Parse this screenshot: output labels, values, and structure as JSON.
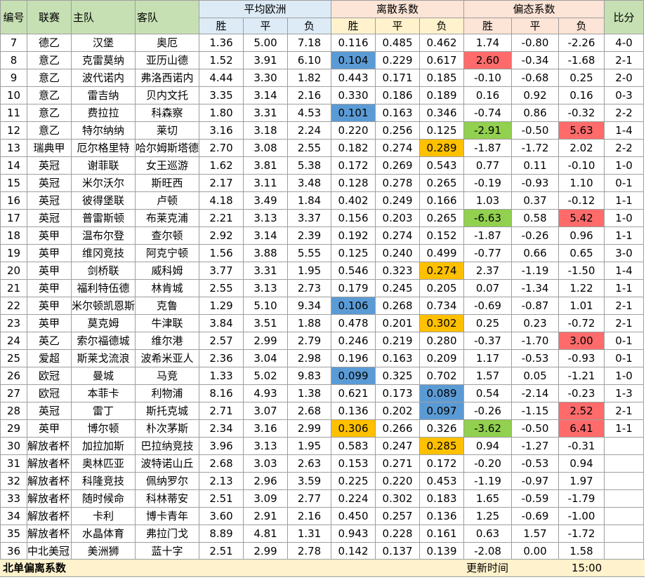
{
  "header": {
    "no": "编号",
    "league": "联赛",
    "home": "主队",
    "away": "客队",
    "avg_europe": "平均欧洲",
    "dispersion": "离散系数",
    "deviation": "偏态系数",
    "score": "比分",
    "win": "胜",
    "draw": "平",
    "lose": "负"
  },
  "rows": [
    {
      "no": "7",
      "league": "德乙",
      "home": "汉堡",
      "away": "奥厄",
      "e": [
        "1.36",
        "5.00",
        "7.18"
      ],
      "d": [
        "0.116",
        "0.485",
        "0.462"
      ],
      "s": [
        "1.74",
        "-0.80",
        "-2.26"
      ],
      "score": "4-0"
    },
    {
      "no": "8",
      "league": "意乙",
      "home": "克雷莫纳",
      "away": "亚历山德",
      "e": [
        "1.52",
        "3.91",
        "6.10"
      ],
      "d": [
        "0.104",
        "0.229",
        "0.617"
      ],
      "s": [
        "2.60",
        "-0.34",
        "-1.68"
      ],
      "score": "2-1"
    },
    {
      "no": "9",
      "league": "意乙",
      "home": "波代诺内",
      "away": "弗洛西诺内",
      "e": [
        "4.44",
        "3.30",
        "1.82"
      ],
      "d": [
        "0.443",
        "0.171",
        "0.185"
      ],
      "s": [
        "-0.10",
        "-0.68",
        "0.25"
      ],
      "score": "2-0"
    },
    {
      "no": "10",
      "league": "意乙",
      "home": "雷吉纳",
      "away": "贝内文托",
      "e": [
        "3.35",
        "3.14",
        "2.16"
      ],
      "d": [
        "0.330",
        "0.186",
        "0.189"
      ],
      "s": [
        "0.16",
        "0.92",
        "0.16"
      ],
      "score": "0-3"
    },
    {
      "no": "11",
      "league": "意乙",
      "home": "费拉拉",
      "away": "科森察",
      "e": [
        "1.80",
        "3.31",
        "4.53"
      ],
      "d": [
        "0.101",
        "0.163",
        "0.346"
      ],
      "s": [
        "-0.74",
        "0.86",
        "-0.32"
      ],
      "score": "2-2"
    },
    {
      "no": "12",
      "league": "意乙",
      "home": "特尔纳纳",
      "away": "莱切",
      "e": [
        "3.16",
        "3.18",
        "2.24"
      ],
      "d": [
        "0.220",
        "0.256",
        "0.125"
      ],
      "s": [
        "-2.91",
        "-0.50",
        "5.63"
      ],
      "score": "1-4"
    },
    {
      "no": "13",
      "league": "瑞典甲",
      "home": "厄尔格里特",
      "away": "哈尔姆斯塔德",
      "e": [
        "2.70",
        "3.08",
        "2.55"
      ],
      "d": [
        "0.182",
        "0.274",
        "0.289"
      ],
      "s": [
        "-1.87",
        "-1.72",
        "2.02"
      ],
      "score": "2-2"
    },
    {
      "no": "14",
      "league": "英冠",
      "home": "谢菲联",
      "away": "女王巡游",
      "e": [
        "1.62",
        "3.81",
        "5.38"
      ],
      "d": [
        "0.172",
        "0.269",
        "0.543"
      ],
      "s": [
        "0.77",
        "0.11",
        "-0.10"
      ],
      "score": "1-0"
    },
    {
      "no": "15",
      "league": "英冠",
      "home": "米尔沃尔",
      "away": "斯旺西",
      "e": [
        "2.17",
        "3.11",
        "3.48"
      ],
      "d": [
        "0.128",
        "0.278",
        "0.265"
      ],
      "s": [
        "-0.19",
        "-0.93",
        "1.10"
      ],
      "score": "0-1"
    },
    {
      "no": "16",
      "league": "英冠",
      "home": "彼得堡联",
      "away": "卢顿",
      "e": [
        "4.18",
        "3.49",
        "1.84"
      ],
      "d": [
        "0.402",
        "0.249",
        "0.166"
      ],
      "s": [
        "1.03",
        "0.37",
        "-0.12"
      ],
      "score": "1-1"
    },
    {
      "no": "17",
      "league": "英冠",
      "home": "普雷斯顿",
      "away": "布莱克浦",
      "e": [
        "2.21",
        "3.13",
        "3.37"
      ],
      "d": [
        "0.156",
        "0.203",
        "0.265"
      ],
      "s": [
        "-6.63",
        "0.58",
        "5.42"
      ],
      "score": "1-0"
    },
    {
      "no": "18",
      "league": "英甲",
      "home": "温布尔登",
      "away": "查尔顿",
      "e": [
        "2.92",
        "3.14",
        "2.39"
      ],
      "d": [
        "0.192",
        "0.274",
        "0.152"
      ],
      "s": [
        "-1.87",
        "-0.26",
        "0.96"
      ],
      "score": "1-1"
    },
    {
      "no": "19",
      "league": "英甲",
      "home": "维冈竞技",
      "away": "阿克宁顿",
      "e": [
        "1.56",
        "3.88",
        "5.55"
      ],
      "d": [
        "0.125",
        "0.240",
        "0.499"
      ],
      "s": [
        "-0.77",
        "0.66",
        "0.65"
      ],
      "score": "3-0"
    },
    {
      "no": "20",
      "league": "英甲",
      "home": "剑桥联",
      "away": "威科姆",
      "e": [
        "3.77",
        "3.31",
        "1.95"
      ],
      "d": [
        "0.546",
        "0.323",
        "0.274"
      ],
      "s": [
        "2.37",
        "-1.19",
        "-1.50"
      ],
      "score": "1-4"
    },
    {
      "no": "21",
      "league": "英甲",
      "home": "福利特伍德",
      "away": "林肯城",
      "e": [
        "2.55",
        "3.13",
        "2.73"
      ],
      "d": [
        "0.179",
        "0.245",
        "0.205"
      ],
      "s": [
        "0.07",
        "-1.34",
        "1.22"
      ],
      "score": "1-1"
    },
    {
      "no": "22",
      "league": "英甲",
      "home": "米尔顿凯恩斯",
      "away": "克鲁",
      "e": [
        "1.29",
        "5.10",
        "9.34"
      ],
      "d": [
        "0.106",
        "0.268",
        "0.734"
      ],
      "s": [
        "-0.69",
        "-0.87",
        "1.01"
      ],
      "score": "2-1"
    },
    {
      "no": "23",
      "league": "英甲",
      "home": "莫克姆",
      "away": "牛津联",
      "e": [
        "3.84",
        "3.51",
        "1.88"
      ],
      "d": [
        "0.478",
        "0.201",
        "0.302"
      ],
      "s": [
        "0.25",
        "0.23",
        "-0.72"
      ],
      "score": "2-1"
    },
    {
      "no": "24",
      "league": "英乙",
      "home": "索尔福德城",
      "away": "维尔港",
      "e": [
        "2.57",
        "2.99",
        "2.79"
      ],
      "d": [
        "0.246",
        "0.219",
        "0.280"
      ],
      "s": [
        "-0.37",
        "-1.70",
        "3.00"
      ],
      "score": "0-1"
    },
    {
      "no": "25",
      "league": "爱超",
      "home": "斯莱戈流浪",
      "away": "波希米亚人",
      "e": [
        "2.36",
        "3.04",
        "2.98"
      ],
      "d": [
        "0.196",
        "0.163",
        "0.209"
      ],
      "s": [
        "1.17",
        "-0.53",
        "-0.93"
      ],
      "score": "0-1"
    },
    {
      "no": "26",
      "league": "欧冠",
      "home": "曼城",
      "away": "马竞",
      "e": [
        "1.33",
        "5.02",
        "9.83"
      ],
      "d": [
        "0.099",
        "0.325",
        "0.702"
      ],
      "s": [
        "1.57",
        "0.05",
        "-1.21"
      ],
      "score": "1-0"
    },
    {
      "no": "27",
      "league": "欧冠",
      "home": "本菲卡",
      "away": "利物浦",
      "e": [
        "8.16",
        "4.93",
        "1.38"
      ],
      "d": [
        "0.621",
        "0.173",
        "0.089"
      ],
      "s": [
        "0.54",
        "-2.14",
        "-0.23"
      ],
      "score": "1-3"
    },
    {
      "no": "28",
      "league": "英冠",
      "home": "雷丁",
      "away": "斯托克城",
      "e": [
        "2.71",
        "3.07",
        "2.68"
      ],
      "d": [
        "0.136",
        "0.202",
        "0.097"
      ],
      "s": [
        "-0.26",
        "-1.15",
        "2.52"
      ],
      "score": "2-1"
    },
    {
      "no": "29",
      "league": "英甲",
      "home": "博尔顿",
      "away": "朴次茅斯",
      "e": [
        "2.34",
        "3.16",
        "2.99"
      ],
      "d": [
        "0.306",
        "0.266",
        "0.326"
      ],
      "s": [
        "-3.62",
        "-0.50",
        "6.41"
      ],
      "score": "1-1"
    },
    {
      "no": "30",
      "league": "解放者杯",
      "home": "加拉加斯",
      "away": "巴拉纳竞技",
      "e": [
        "3.96",
        "3.13",
        "1.95"
      ],
      "d": [
        "0.583",
        "0.247",
        "0.285"
      ],
      "s": [
        "0.94",
        "-1.27",
        "-0.31"
      ],
      "score": ""
    },
    {
      "no": "31",
      "league": "解放者杯",
      "home": "奥林匹亚",
      "away": "波特诺山丘",
      "e": [
        "2.68",
        "3.03",
        "2.63"
      ],
      "d": [
        "0.153",
        "0.271",
        "0.172"
      ],
      "s": [
        "-0.20",
        "-0.53",
        "0.94"
      ],
      "score": ""
    },
    {
      "no": "32",
      "league": "解放者杯",
      "home": "科隆竞技",
      "away": "佩纳罗尔",
      "e": [
        "2.13",
        "2.96",
        "3.59"
      ],
      "d": [
        "0.225",
        "0.220",
        "0.453"
      ],
      "s": [
        "-1.19",
        "-0.97",
        "1.97"
      ],
      "score": ""
    },
    {
      "no": "33",
      "league": "解放者杯",
      "home": "随时候命",
      "away": "科林蒂安",
      "e": [
        "2.51",
        "3.09",
        "2.77"
      ],
      "d": [
        "0.224",
        "0.302",
        "0.183"
      ],
      "s": [
        "1.65",
        "-0.59",
        "-1.79"
      ],
      "score": ""
    },
    {
      "no": "34",
      "league": "解放者杯",
      "home": "卡利",
      "away": "博卡青年",
      "e": [
        "3.60",
        "2.91",
        "2.16"
      ],
      "d": [
        "0.450",
        "0.257",
        "0.136"
      ],
      "s": [
        "1.25",
        "-0.69",
        "-1.00"
      ],
      "score": ""
    },
    {
      "no": "35",
      "league": "解放者杯",
      "home": "水晶体育",
      "away": "弗拉门戈",
      "e": [
        "8.89",
        "4.81",
        "1.31"
      ],
      "d": [
        "0.943",
        "0.228",
        "0.161"
      ],
      "s": [
        "0.63",
        "1.57",
        "-1.72"
      ],
      "score": ""
    },
    {
      "no": "36",
      "league": "中北美冠",
      "home": "美洲狮",
      "away": "蓝十字",
      "e": [
        "2.51",
        "2.99",
        "2.78"
      ],
      "d": [
        "0.142",
        "0.137",
        "0.139"
      ],
      "s": [
        "-2.08",
        "0.00",
        "1.58"
      ],
      "score": ""
    }
  ],
  "highlights": {
    "blue": "#5b9bd5",
    "orange": "#ffc000",
    "red": "#ff6b6b",
    "green": "#92d050",
    "cells": [
      {
        "row": 1,
        "col": "d0",
        "color": "blue"
      },
      {
        "row": 1,
        "col": "s0",
        "color": "red"
      },
      {
        "row": 4,
        "col": "d0",
        "color": "blue"
      },
      {
        "row": 5,
        "col": "s0",
        "color": "green"
      },
      {
        "row": 5,
        "col": "s2",
        "color": "red"
      },
      {
        "row": 6,
        "col": "d2",
        "color": "orange"
      },
      {
        "row": 10,
        "col": "s0",
        "color": "green"
      },
      {
        "row": 10,
        "col": "s2",
        "color": "red"
      },
      {
        "row": 13,
        "col": "d2",
        "color": "orange"
      },
      {
        "row": 15,
        "col": "d0",
        "color": "blue"
      },
      {
        "row": 16,
        "col": "d2",
        "color": "orange"
      },
      {
        "row": 17,
        "col": "s2",
        "color": "red"
      },
      {
        "row": 19,
        "col": "d0",
        "color": "blue"
      },
      {
        "row": 20,
        "col": "d2",
        "color": "blue"
      },
      {
        "row": 21,
        "col": "d2",
        "color": "blue"
      },
      {
        "row": 21,
        "col": "s2",
        "color": "red"
      },
      {
        "row": 22,
        "col": "d0",
        "color": "orange"
      },
      {
        "row": 22,
        "col": "s0",
        "color": "green"
      },
      {
        "row": 22,
        "col": "s2",
        "color": "red"
      },
      {
        "row": 23,
        "col": "d2",
        "color": "orange"
      }
    ]
  },
  "footer": {
    "title": "北单偏离系数",
    "update_label": "更新时间",
    "update_time": "15:00"
  }
}
